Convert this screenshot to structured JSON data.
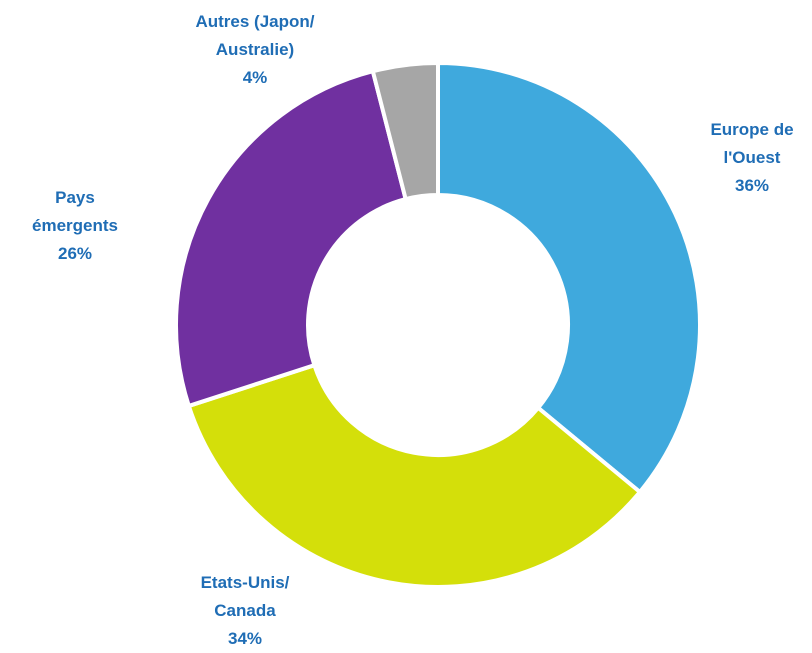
{
  "chart_data": {
    "type": "donut",
    "categories": [
      "Europe de l'Ouest",
      "Etats-Unis/ Canada",
      "Pays émergents",
      "Autres (Japon/ Australie)"
    ],
    "values": [
      36,
      34,
      26,
      4
    ],
    "value_labels": [
      "36%",
      "34%",
      "26%",
      "4%"
    ],
    "colors": [
      "#3fa9dd",
      "#d4df0a",
      "#7030a0",
      "#a6a6a6"
    ]
  }
}
